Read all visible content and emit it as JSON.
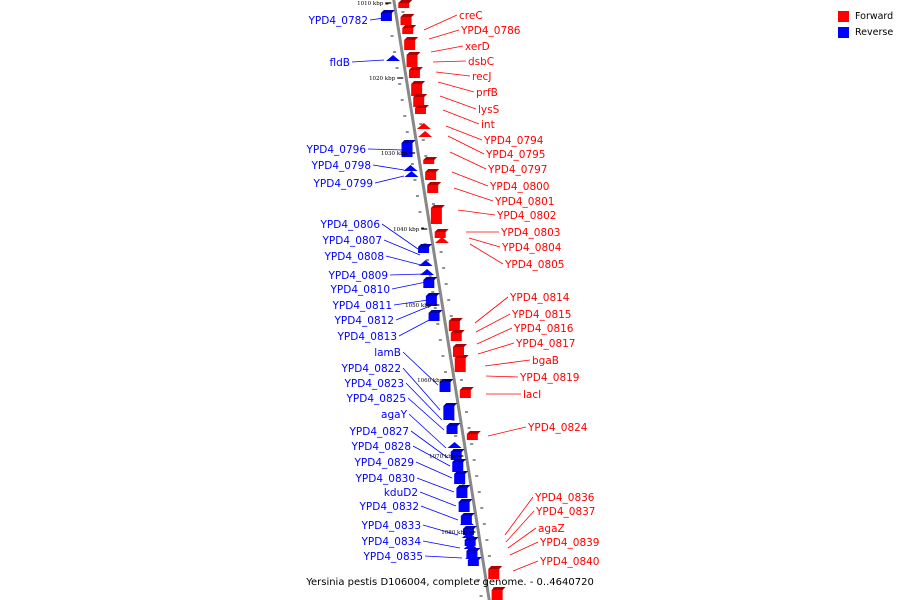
{
  "legend": {
    "forward": "Forward",
    "reverse": "Reverse"
  },
  "colors": {
    "forward": "#ff0000",
    "reverse": "#0000ff",
    "axis": "#888888"
  },
  "caption": "Yersinia pestis D106004, complete genome. - 0..4640720",
  "kbp_labels": [
    "1010 kbp",
    "1020 kbp",
    "1030 kbp",
    "1040 kbp",
    "1050 kbp",
    "1060 kbp",
    "1070 kbp",
    "1080 kbp"
  ],
  "forward_genes": [
    "creC",
    "YPD4_0786",
    "xerD",
    "dsbC",
    "recJ",
    "prfB",
    "lysS",
    "int",
    "YPD4_0794",
    "YPD4_0795",
    "YPD4_0797",
    "YPD4_0800",
    "YPD4_0801",
    "YPD4_0802",
    "YPD4_0803",
    "YPD4_0804",
    "YPD4_0805",
    "YPD4_0814",
    "YPD4_0815",
    "YPD4_0816",
    "YPD4_0817",
    "bgaB",
    "YPD4_0819",
    "lacI",
    "YPD4_0824",
    "YPD4_0836",
    "YPD4_0837",
    "agaZ",
    "YPD4_0839",
    "YPD4_0840"
  ],
  "reverse_genes": [
    "YPD4_0782",
    "fldB",
    "YPD4_0796",
    "YPD4_0798",
    "YPD4_0799",
    "YPD4_0806",
    "YPD4_0807",
    "YPD4_0808",
    "YPD4_0809",
    "YPD4_0810",
    "YPD4_0811",
    "YPD4_0812",
    "YPD4_0813",
    "lamB",
    "YPD4_0822",
    "YPD4_0823",
    "YPD4_0825",
    "agaY",
    "YPD4_0827",
    "YPD4_0828",
    "YPD4_0829",
    "YPD4_0830",
    "kduD2",
    "YPD4_0832",
    "YPD4_0833",
    "YPD4_0834",
    "YPD4_0835"
  ]
}
